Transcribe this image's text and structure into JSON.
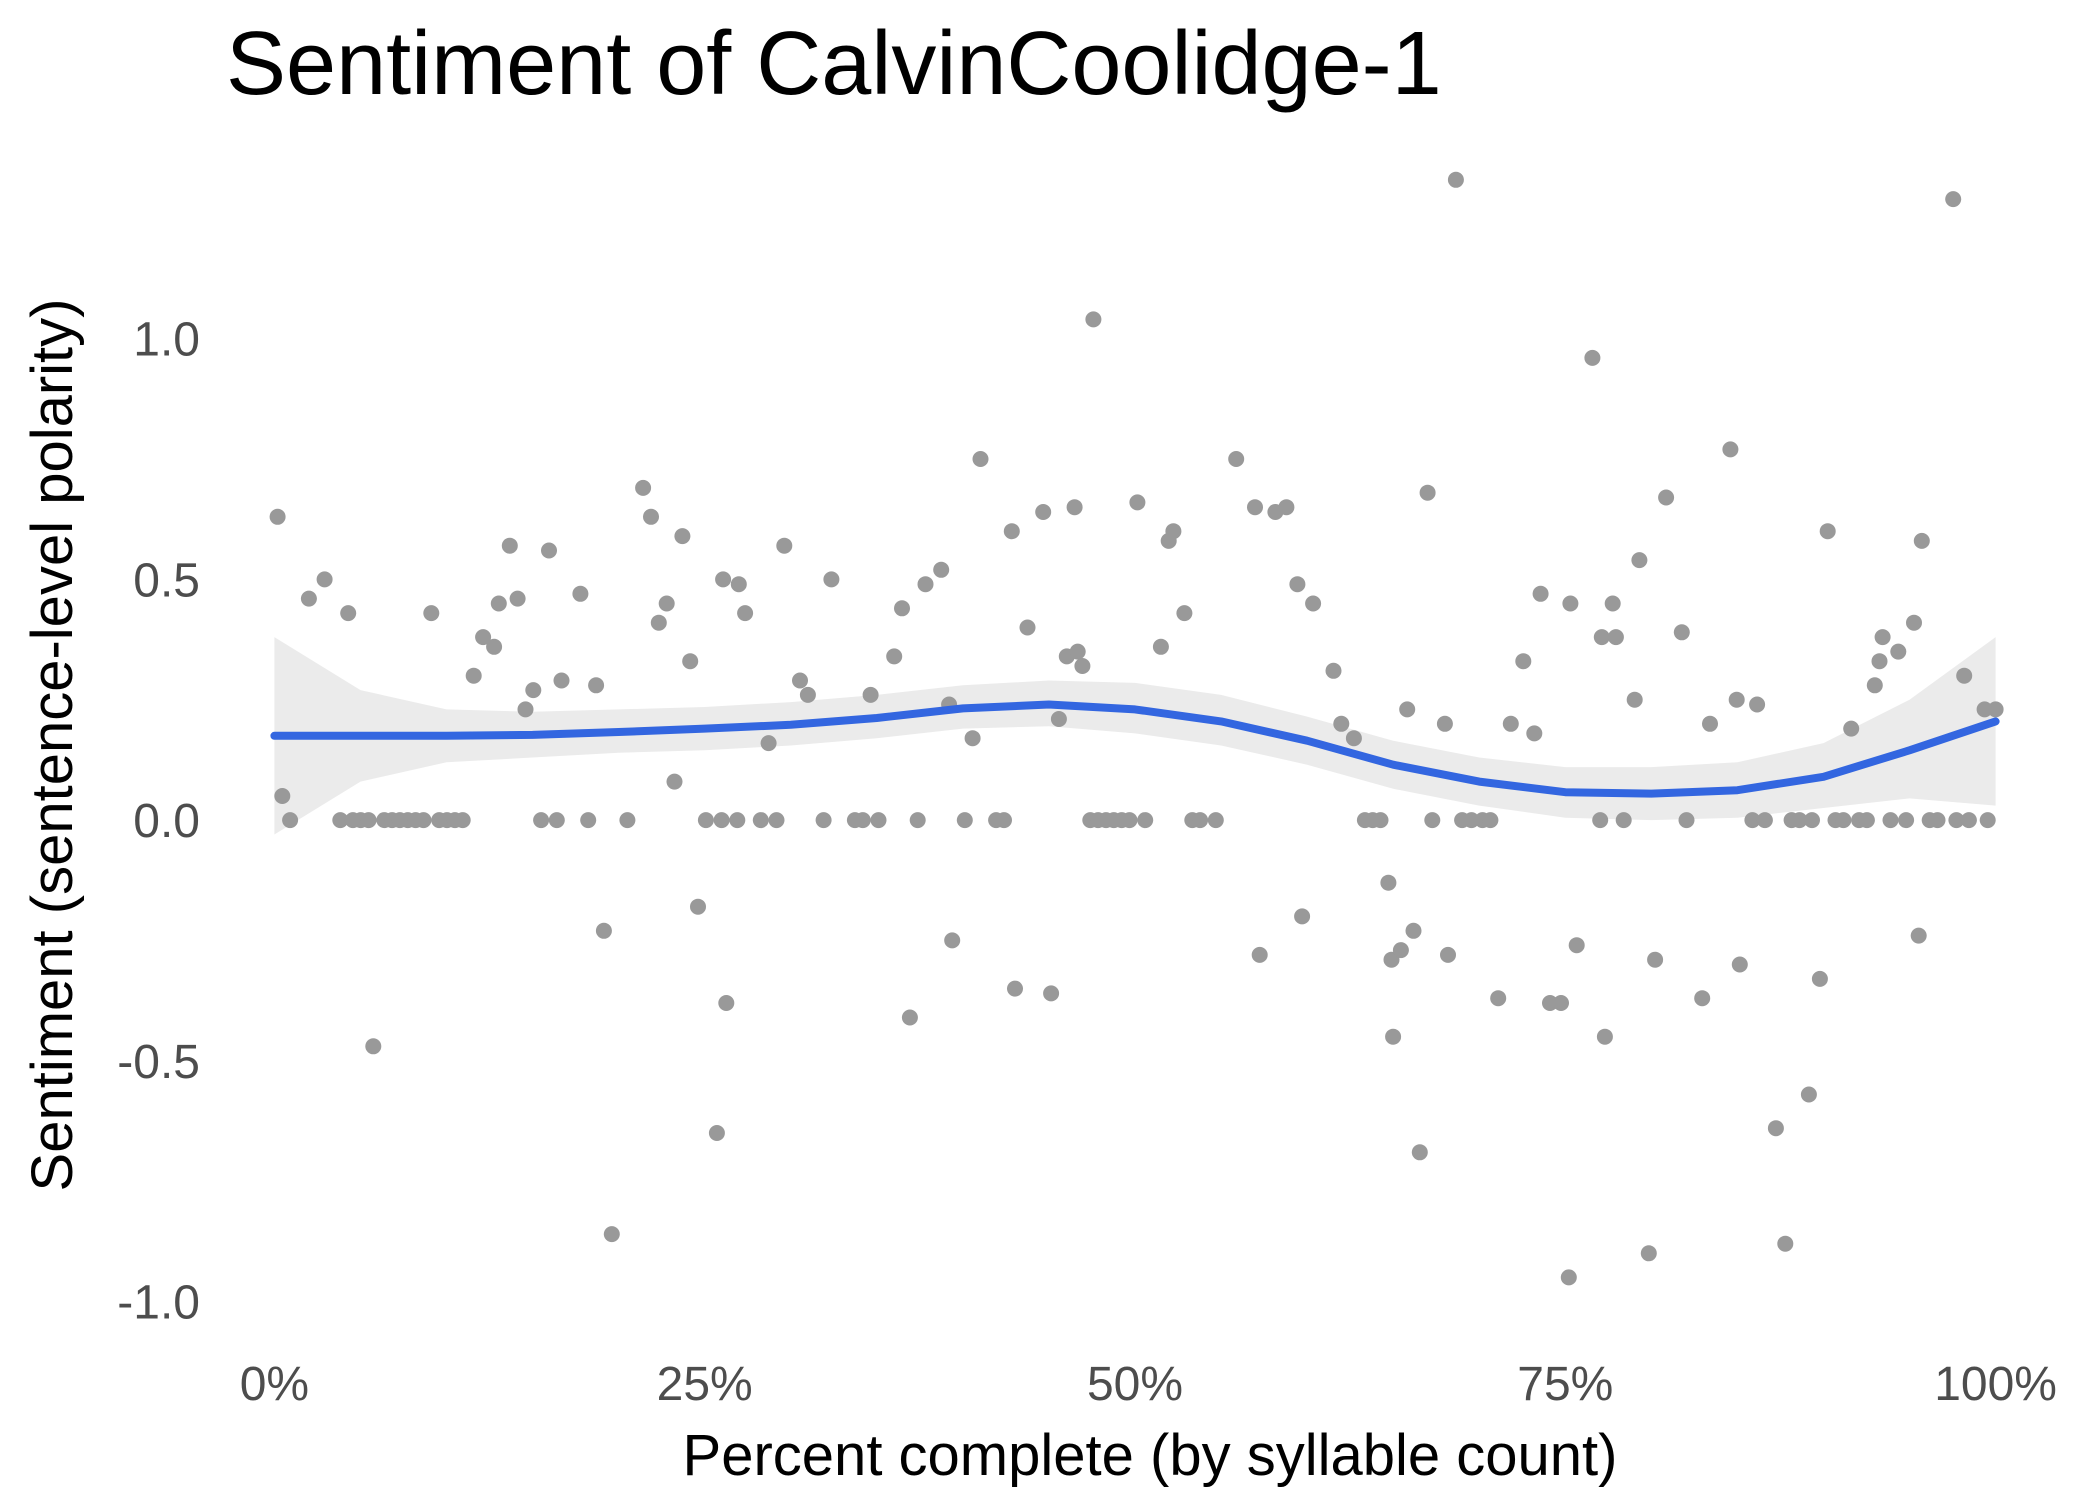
{
  "chart_data": {
    "type": "scatter",
    "title": "Sentiment of CalvinCoolidge-1",
    "xlabel": "Percent complete (by syllable count)",
    "ylabel": "Sentiment (sentence-level polarity)",
    "xlim": [
      -0.02,
      1.02
    ],
    "ylim": [
      -1.08,
      1.34
    ],
    "x_ticks": [
      0,
      0.25,
      0.5,
      0.75,
      1.0
    ],
    "x_tick_labels": [
      "0%",
      "25%",
      "50%",
      "75%",
      "100%"
    ],
    "y_ticks": [
      -1.0,
      -0.5,
      0.0,
      0.5,
      1.0
    ],
    "y_tick_labels": [
      "-1.0",
      "-0.5",
      "0.0",
      "0.5",
      "1.0"
    ],
    "grid": false,
    "colors": {
      "points": "#999999",
      "smooth": "#3366e0",
      "band": "#ebebeb"
    },
    "points": [
      [
        0.002,
        0.63
      ],
      [
        0.005,
        0.05
      ],
      [
        0.01,
        0.0
      ],
      [
        0.022,
        0.46
      ],
      [
        0.032,
        0.5
      ],
      [
        0.042,
        0.0
      ],
      [
        0.047,
        0.43
      ],
      [
        0.05,
        0.0
      ],
      [
        0.055,
        0.0
      ],
      [
        0.06,
        0.0
      ],
      [
        0.063,
        -0.47
      ],
      [
        0.07,
        0.0
      ],
      [
        0.075,
        0.0
      ],
      [
        0.08,
        0.0
      ],
      [
        0.085,
        0.0
      ],
      [
        0.09,
        0.0
      ],
      [
        0.095,
        0.0
      ],
      [
        0.1,
        0.43
      ],
      [
        0.105,
        0.0
      ],
      [
        0.11,
        0.0
      ],
      [
        0.115,
        0.0
      ],
      [
        0.12,
        0.0
      ],
      [
        0.127,
        0.3
      ],
      [
        0.133,
        0.38
      ],
      [
        0.14,
        0.36
      ],
      [
        0.143,
        0.45
      ],
      [
        0.15,
        0.57
      ],
      [
        0.155,
        0.46
      ],
      [
        0.16,
        0.23
      ],
      [
        0.165,
        0.27
      ],
      [
        0.17,
        0.0
      ],
      [
        0.175,
        0.56
      ],
      [
        0.18,
        0.0
      ],
      [
        0.183,
        0.29
      ],
      [
        0.195,
        0.47
      ],
      [
        0.2,
        0.0
      ],
      [
        0.205,
        0.28
      ],
      [
        0.21,
        -0.23
      ],
      [
        0.215,
        -0.86
      ],
      [
        0.225,
        0.0
      ],
      [
        0.235,
        0.69
      ],
      [
        0.24,
        0.63
      ],
      [
        0.245,
        0.41
      ],
      [
        0.25,
        0.45
      ],
      [
        0.255,
        0.08
      ],
      [
        0.26,
        0.59
      ],
      [
        0.265,
        0.33
      ],
      [
        0.27,
        -0.18
      ],
      [
        0.275,
        0.0
      ],
      [
        0.282,
        -0.65
      ],
      [
        0.285,
        0.0
      ],
      [
        0.286,
        0.5
      ],
      [
        0.288,
        -0.38
      ],
      [
        0.295,
        0.0
      ],
      [
        0.296,
        0.49
      ],
      [
        0.3,
        0.43
      ],
      [
        0.31,
        0.0
      ],
      [
        0.315,
        0.16
      ],
      [
        0.32,
        0.0
      ],
      [
        0.325,
        0.57
      ],
      [
        0.335,
        0.29
      ],
      [
        0.34,
        0.26
      ],
      [
        0.35,
        0.0
      ],
      [
        0.355,
        0.5
      ],
      [
        0.37,
        0.0
      ],
      [
        0.375,
        0.0
      ],
      [
        0.38,
        0.26
      ],
      [
        0.385,
        0.0
      ],
      [
        0.395,
        0.34
      ],
      [
        0.4,
        0.44
      ],
      [
        0.405,
        -0.41
      ],
      [
        0.41,
        0.0
      ],
      [
        0.415,
        0.49
      ],
      [
        0.425,
        0.52
      ],
      [
        0.43,
        0.24
      ],
      [
        0.432,
        -0.25
      ],
      [
        0.44,
        0.0
      ],
      [
        0.445,
        0.17
      ],
      [
        0.45,
        0.75
      ],
      [
        0.46,
        0.0
      ],
      [
        0.465,
        0.0
      ],
      [
        0.47,
        0.6
      ],
      [
        0.472,
        -0.35
      ],
      [
        0.48,
        0.4
      ],
      [
        0.49,
        0.64
      ],
      [
        0.495,
        -0.36
      ],
      [
        0.5,
        0.21
      ],
      [
        0.505,
        0.34
      ],
      [
        0.51,
        0.65
      ],
      [
        0.512,
        0.35
      ],
      [
        0.515,
        0.32
      ],
      [
        0.52,
        0.0
      ],
      [
        0.522,
        1.04
      ],
      [
        0.525,
        0.0
      ],
      [
        0.53,
        0.0
      ],
      [
        0.535,
        0.0
      ],
      [
        0.54,
        0.0
      ],
      [
        0.545,
        0.0
      ],
      [
        0.55,
        0.66
      ],
      [
        0.555,
        0.0
      ],
      [
        0.565,
        0.36
      ],
      [
        0.57,
        0.58
      ],
      [
        0.573,
        0.6
      ],
      [
        0.58,
        0.43
      ],
      [
        0.585,
        0.0
      ],
      [
        0.59,
        0.0
      ],
      [
        0.6,
        0.0
      ],
      [
        0.613,
        0.75
      ],
      [
        0.625,
        0.65
      ],
      [
        0.628,
        -0.28
      ],
      [
        0.638,
        0.64
      ],
      [
        0.645,
        0.65
      ],
      [
        0.652,
        0.49
      ],
      [
        0.655,
        -0.2
      ],
      [
        0.662,
        0.45
      ],
      [
        0.675,
        0.31
      ],
      [
        0.68,
        0.2
      ],
      [
        0.688,
        0.17
      ],
      [
        0.695,
        0.0
      ],
      [
        0.7,
        0.0
      ],
      [
        0.705,
        0.0
      ],
      [
        0.71,
        -0.13
      ],
      [
        0.712,
        -0.29
      ],
      [
        0.713,
        -0.45
      ],
      [
        0.718,
        -0.27
      ],
      [
        0.722,
        0.23
      ],
      [
        0.726,
        -0.23
      ],
      [
        0.73,
        -0.69
      ],
      [
        0.735,
        0.68
      ],
      [
        0.738,
        0.0
      ],
      [
        0.746,
        0.2
      ],
      [
        0.748,
        -0.28
      ],
      [
        0.753,
        1.33
      ],
      [
        0.757,
        0.0
      ],
      [
        0.763,
        0.0
      ],
      [
        0.77,
        0.0
      ],
      [
        0.775,
        0.0
      ],
      [
        0.78,
        -0.37
      ],
      [
        0.788,
        0.2
      ],
      [
        0.796,
        0.33
      ],
      [
        0.803,
        0.18
      ],
      [
        0.807,
        0.47
      ],
      [
        0.813,
        -0.38
      ],
      [
        0.82,
        -0.38
      ],
      [
        0.825,
        -0.95
      ],
      [
        0.826,
        0.45
      ],
      [
        0.83,
        -0.26
      ],
      [
        0.84,
        0.96
      ],
      [
        0.845,
        0.0
      ],
      [
        0.846,
        0.38
      ],
      [
        0.848,
        -0.45
      ],
      [
        0.853,
        0.45
      ],
      [
        0.855,
        0.38
      ],
      [
        0.86,
        0.0
      ],
      [
        0.867,
        0.25
      ],
      [
        0.87,
        0.54
      ],
      [
        0.876,
        -0.9
      ],
      [
        0.88,
        -0.29
      ],
      [
        0.887,
        0.67
      ],
      [
        0.897,
        0.39
      ],
      [
        0.9,
        0.0
      ],
      [
        0.91,
        -0.37
      ],
      [
        0.915,
        0.2
      ],
      [
        0.928,
        0.77
      ],
      [
        0.932,
        0.25
      ],
      [
        0.934,
        -0.3
      ],
      [
        0.942,
        0.0
      ],
      [
        0.945,
        0.24
      ],
      [
        0.95,
        0.0
      ],
      [
        0.957,
        -0.64
      ],
      [
        0.963,
        -0.88
      ],
      [
        0.967,
        0.0
      ],
      [
        0.972,
        0.0
      ],
      [
        0.978,
        -0.57
      ],
      [
        0.98,
        0.0
      ],
      [
        0.985,
        -0.33
      ],
      [
        0.99,
        0.6
      ],
      [
        0.995,
        0.0
      ],
      [
        1.0,
        0.0
      ],
      [
        1.005,
        0.19
      ],
      [
        1.01,
        0.0
      ],
      [
        1.015,
        0.0
      ],
      [
        1.02,
        0.28
      ],
      [
        1.023,
        0.33
      ],
      [
        1.025,
        0.38
      ],
      [
        1.03,
        0.0
      ],
      [
        1.035,
        0.35
      ],
      [
        1.04,
        0.0
      ],
      [
        1.045,
        0.41
      ],
      [
        1.048,
        -0.24
      ],
      [
        1.05,
        0.58
      ],
      [
        1.055,
        0.0
      ],
      [
        1.06,
        0.0
      ],
      [
        1.07,
        1.29
      ],
      [
        1.072,
        0.0
      ],
      [
        1.077,
        0.3
      ],
      [
        1.08,
        0.0
      ],
      [
        1.09,
        0.23
      ],
      [
        1.092,
        0.0
      ],
      [
        1.097,
        0.23
      ]
    ],
    "smooth_x": [
      0.0,
      0.05,
      0.1,
      0.15,
      0.2,
      0.25,
      0.3,
      0.35,
      0.4,
      0.45,
      0.5,
      0.55,
      0.6,
      0.65,
      0.7,
      0.75,
      0.8,
      0.85,
      0.9,
      0.95,
      1.0
    ],
    "smooth_y": [
      0.175,
      0.175,
      0.175,
      0.177,
      0.183,
      0.19,
      0.198,
      0.212,
      0.232,
      0.24,
      0.23,
      0.205,
      0.165,
      0.115,
      0.08,
      0.058,
      0.055,
      0.062,
      0.09,
      0.145,
      0.205
    ],
    "smooth_lower": [
      -0.03,
      0.08,
      0.12,
      0.13,
      0.14,
      0.145,
      0.155,
      0.17,
      0.19,
      0.195,
      0.18,
      0.155,
      0.115,
      0.065,
      0.03,
      0.005,
      0.0,
      0.005,
      0.025,
      0.045,
      0.03
    ],
    "smooth_upper": [
      0.38,
      0.27,
      0.23,
      0.225,
      0.23,
      0.235,
      0.245,
      0.26,
      0.28,
      0.29,
      0.285,
      0.26,
      0.215,
      0.165,
      0.13,
      0.11,
      0.11,
      0.12,
      0.16,
      0.25,
      0.38
    ]
  }
}
